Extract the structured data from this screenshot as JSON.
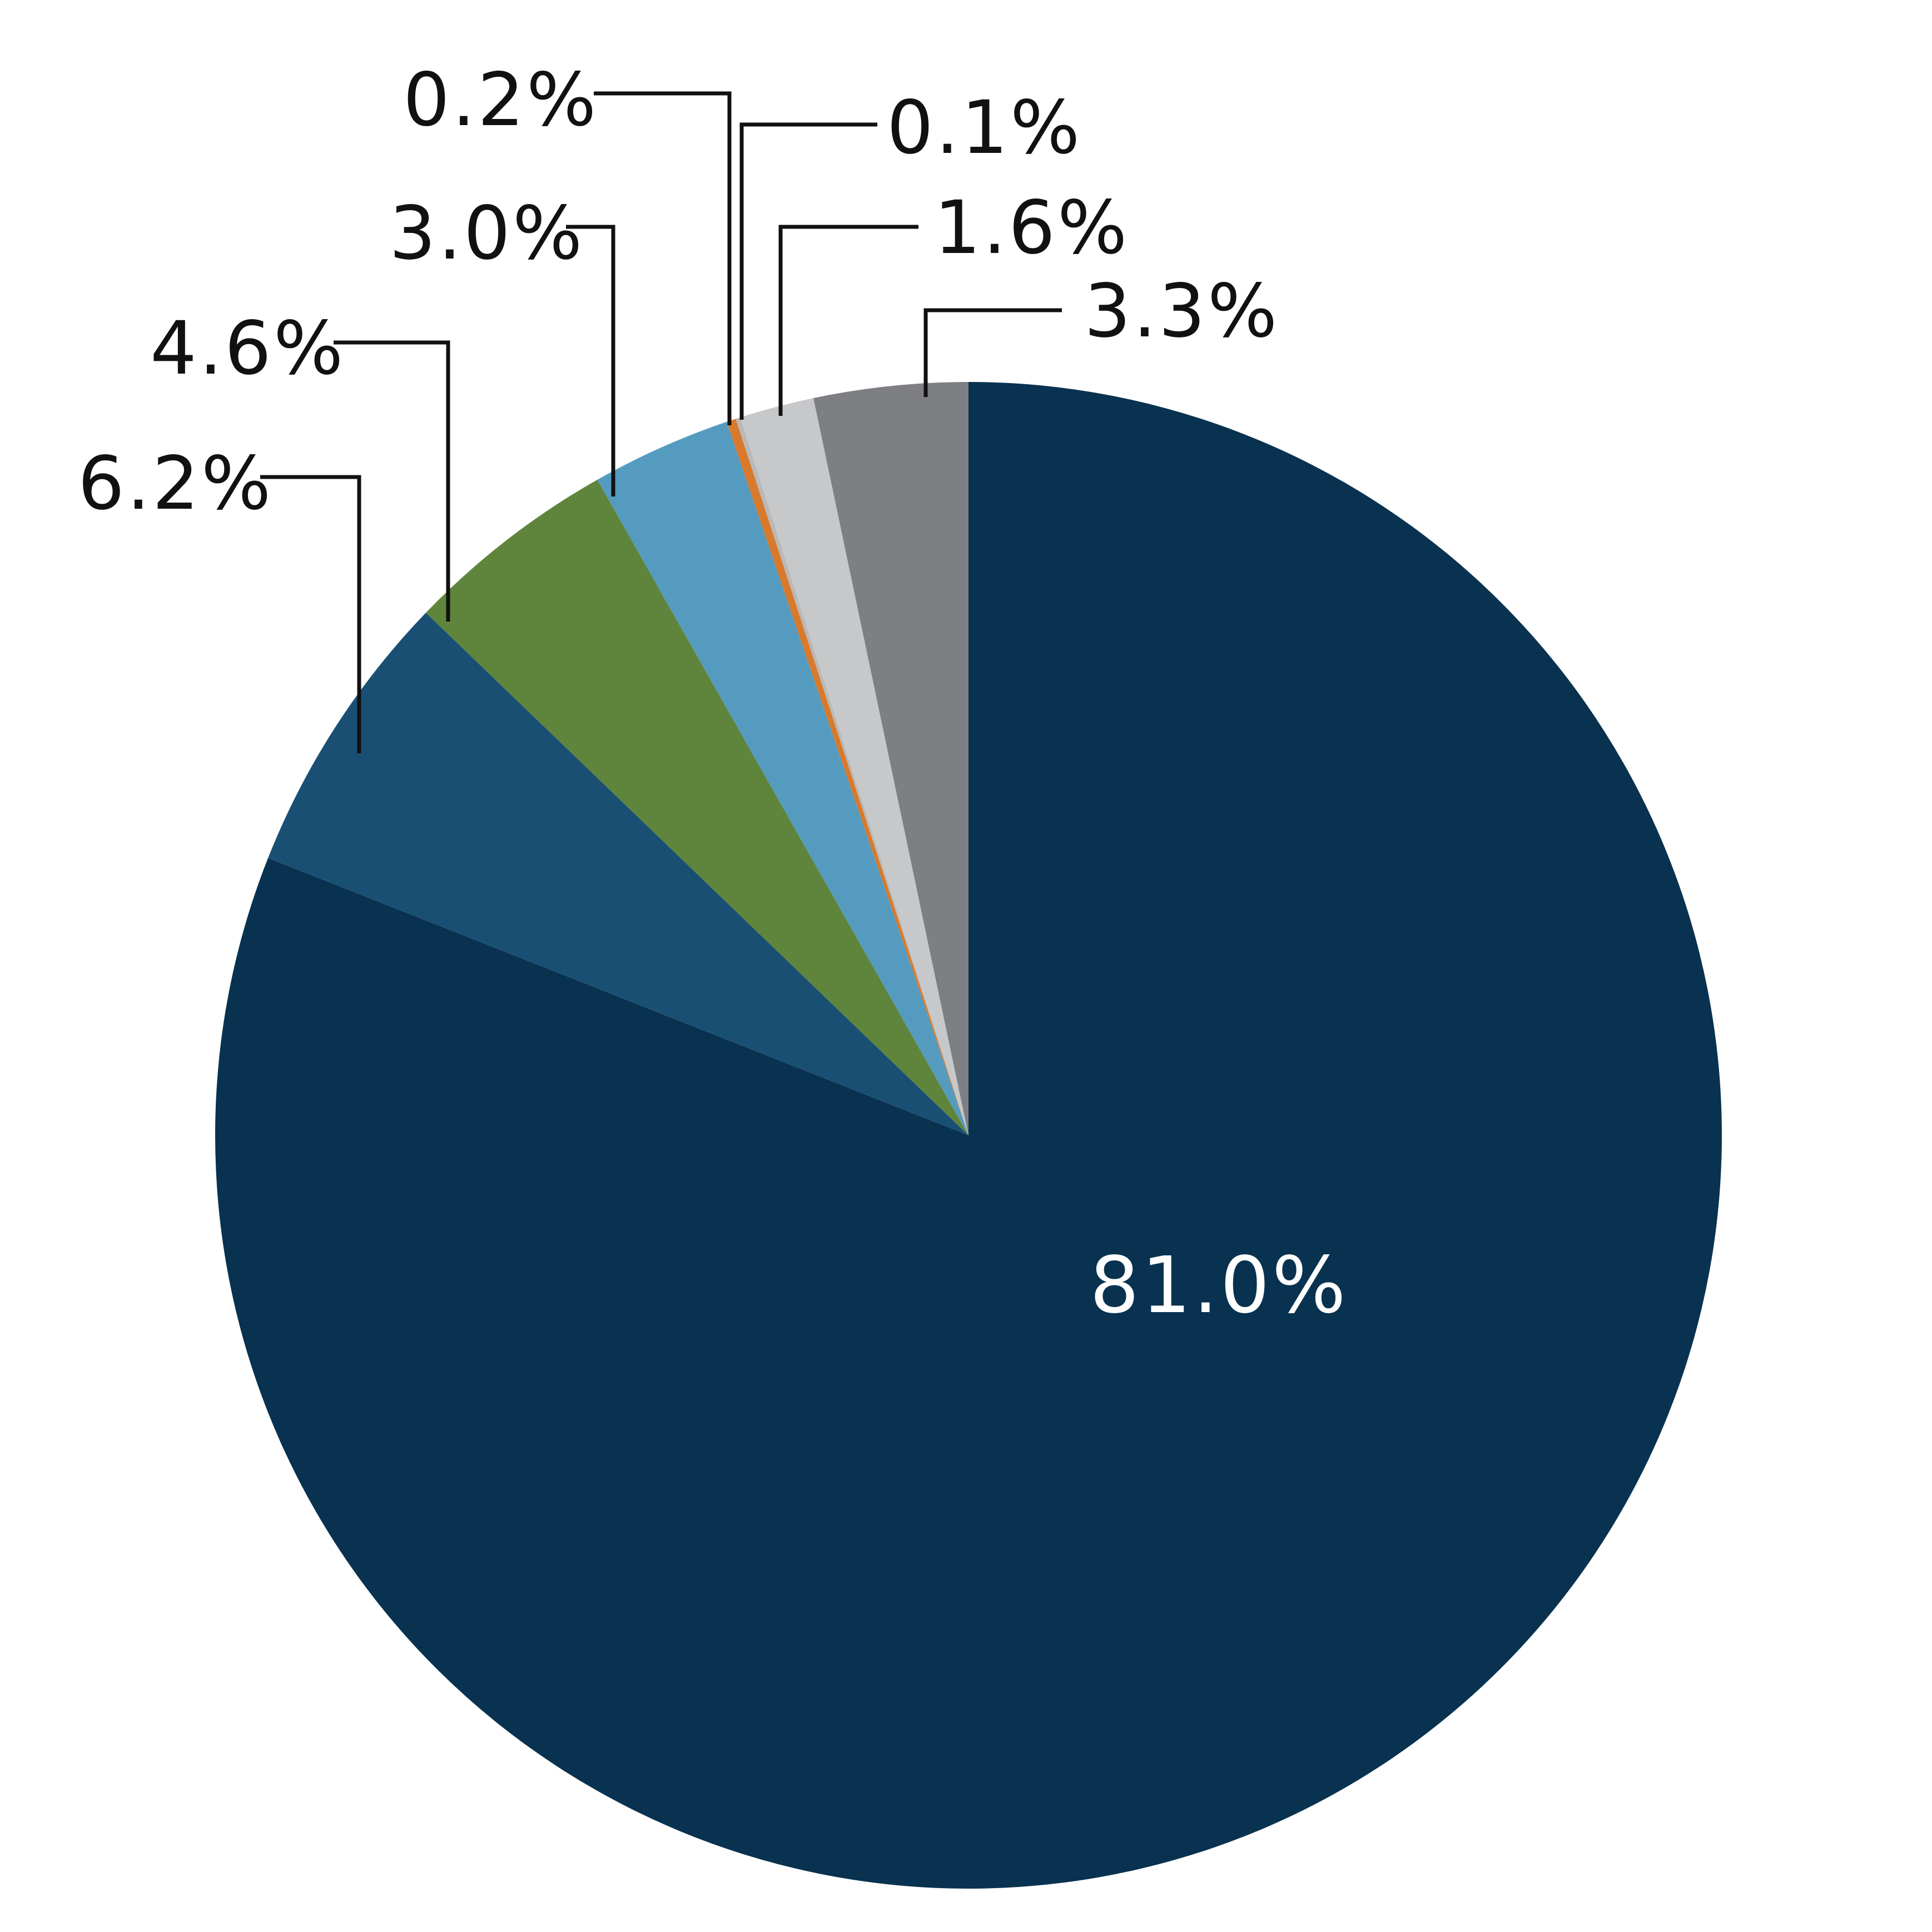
{
  "chart_data": {
    "type": "pie",
    "title": "",
    "slices": [
      {
        "value": 81.0,
        "label": "81.0%",
        "color": "#08324f"
      },
      {
        "value": 6.2,
        "label": "6.2%",
        "color": "#1a4f74"
      },
      {
        "value": 4.6,
        "label": "4.6%",
        "color": "#5f853c"
      },
      {
        "value": 3.0,
        "label": "3.0%",
        "color": "#559bbf"
      },
      {
        "value": 0.2,
        "label": "0.2%",
        "color": "#d9792b"
      },
      {
        "value": 0.1,
        "label": "0.1%",
        "color": "#b9b9b9"
      },
      {
        "value": 1.6,
        "label": "1.6%",
        "color": "#c7c8ca"
      },
      {
        "value": 3.3,
        "label": "3.3%",
        "color": "#7e7f83"
      }
    ],
    "start_angle": "12 o'clock",
    "direction": "clockwise",
    "legend": "none"
  }
}
